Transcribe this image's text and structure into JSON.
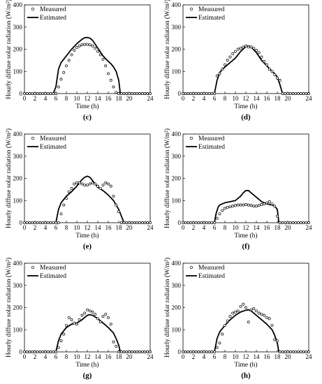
{
  "chart_data": [
    {
      "type": "line",
      "panel": "(c)",
      "title": "",
      "xlabel": "Time (h)",
      "ylabel": "Hourly diffuse solar radiation (W/m²)",
      "xlim": [
        0,
        24
      ],
      "ylim": [
        0,
        400
      ],
      "xticks": [
        0,
        2,
        4,
        6,
        8,
        10,
        12,
        14,
        16,
        18,
        20,
        24
      ],
      "yticks": [
        0,
        100,
        200,
        300,
        400
      ],
      "grid": false,
      "legend": "top-left",
      "series": [
        {
          "name": "Measured",
          "kind": "scatter",
          "x": [
            0,
            0.5,
            1,
            1.5,
            2,
            2.5,
            3,
            3.5,
            4,
            4.5,
            5,
            5.5,
            6,
            6.5,
            7,
            7.5,
            8,
            8.5,
            9,
            9.5,
            10,
            10.5,
            11,
            11.5,
            12,
            12.5,
            13,
            13.5,
            14,
            14.5,
            15,
            15.5,
            16,
            16.5,
            17,
            17.5,
            18,
            18.5,
            19,
            19.5,
            20,
            20.5,
            21,
            21.5,
            22,
            22.5,
            23,
            23.5,
            24
          ],
          "y": [
            0,
            0,
            0,
            0,
            0,
            0,
            0,
            0,
            0,
            0,
            0,
            0,
            0,
            30,
            65,
            95,
            125,
            150,
            175,
            195,
            208,
            215,
            220,
            222,
            222,
            220,
            215,
            205,
            190,
            175,
            155,
            125,
            90,
            60,
            30,
            5,
            0,
            0,
            0,
            0,
            0,
            0,
            0,
            0,
            0,
            0,
            0,
            0,
            0
          ]
        },
        {
          "name": "Estimated",
          "kind": "line",
          "x": [
            0,
            5.5,
            6,
            6.5,
            7,
            7.5,
            8,
            9,
            10,
            11,
            11.5,
            12,
            12.5,
            13,
            14,
            15,
            16,
            16.5,
            17,
            17.5,
            18,
            18.3,
            24
          ],
          "y": [
            0,
            0,
            30,
            110,
            140,
            155,
            170,
            200,
            225,
            245,
            252,
            253,
            250,
            240,
            205,
            170,
            145,
            135,
            120,
            100,
            60,
            0,
            0
          ]
        }
      ]
    },
    {
      "type": "line",
      "panel": "(d)",
      "title": "",
      "xlabel": "Time (h)",
      "ylabel": "Hourly diffuse solar radiation (W/m²)",
      "xlim": [
        0,
        24
      ],
      "ylim": [
        0,
        400
      ],
      "xticks": [
        0,
        2,
        4,
        6,
        8,
        10,
        12,
        14,
        16,
        18,
        20,
        24
      ],
      "yticks": [
        0,
        100,
        200,
        300,
        400
      ],
      "grid": false,
      "legend": "top-left",
      "series": [
        {
          "name": "Measured",
          "kind": "scatter",
          "x": [
            0,
            0.5,
            1,
            1.5,
            2,
            2.5,
            3,
            3.5,
            4,
            4.5,
            5,
            5.5,
            6,
            6.5,
            7,
            7.5,
            8,
            8.5,
            9,
            9.5,
            10,
            10.5,
            11,
            11.5,
            12,
            12.5,
            13,
            13.5,
            14,
            14.5,
            15,
            15.5,
            16,
            16.5,
            17,
            17.5,
            18,
            18.5,
            19,
            19.5,
            20,
            20.5,
            21,
            21.5,
            22,
            22.5,
            23,
            23.5,
            24
          ],
          "y": [
            0,
            0,
            0,
            0,
            0,
            0,
            0,
            0,
            0,
            0,
            0,
            0,
            0,
            80,
            90,
            110,
            130,
            150,
            165,
            180,
            190,
            200,
            205,
            210,
            215,
            210,
            210,
            205,
            195,
            185,
            165,
            145,
            130,
            110,
            100,
            85,
            70,
            60,
            0,
            0,
            0,
            0,
            0,
            0,
            0,
            0,
            0,
            0,
            0
          ]
        },
        {
          "name": "Estimated",
          "kind": "line",
          "x": [
            0,
            6,
            6.5,
            7,
            8,
            9,
            10,
            11,
            12,
            12.5,
            13,
            14,
            15,
            16,
            17,
            17.5,
            18,
            18.5,
            19,
            24
          ],
          "y": [
            0,
            0,
            60,
            95,
            120,
            140,
            160,
            190,
            212,
            215,
            210,
            185,
            150,
            125,
            100,
            90,
            75,
            40,
            0,
            0
          ]
        }
      ]
    },
    {
      "type": "line",
      "panel": "(e)",
      "title": "",
      "xlabel": "Time (h)",
      "ylabel": "Hourly diffuse solar radiation (W/m²)",
      "xlim": [
        0,
        24
      ],
      "ylim": [
        0,
        400
      ],
      "xticks": [
        0,
        2,
        4,
        6,
        8,
        10,
        12,
        14,
        16,
        18,
        20,
        24
      ],
      "yticks": [
        0,
        100,
        200,
        300,
        400
      ],
      "grid": false,
      "legend": "top-left",
      "series": [
        {
          "name": "Measured",
          "kind": "scatter",
          "x": [
            0,
            0.5,
            1,
            1.5,
            2,
            2.5,
            3,
            3.5,
            4,
            4.5,
            5,
            5.5,
            6,
            6.5,
            7,
            7.5,
            8,
            8.5,
            9,
            9.5,
            10,
            10.5,
            11,
            11.5,
            12,
            12.5,
            13,
            13.5,
            14,
            14.5,
            15,
            15.5,
            16,
            16.5,
            17,
            17.5,
            18,
            18.5,
            19,
            19.5,
            20,
            20.5,
            21,
            21.5,
            22,
            22.5,
            23,
            23.5,
            24
          ],
          "y": [
            0,
            0,
            0,
            0,
            0,
            0,
            0,
            0,
            0,
            0,
            0,
            0,
            0,
            0,
            40,
            80,
            110,
            140,
            155,
            175,
            180,
            180,
            175,
            170,
            170,
            175,
            180,
            175,
            165,
            155,
            170,
            180,
            175,
            165,
            120,
            80,
            50,
            0,
            0,
            0,
            0,
            0,
            0,
            0,
            0,
            0,
            0,
            0,
            0
          ]
        },
        {
          "name": "Estimated",
          "kind": "line",
          "x": [
            0,
            6,
            6.5,
            7,
            8,
            9,
            10,
            11,
            11.5,
            12,
            12.5,
            13,
            14,
            15,
            16,
            17,
            17.5,
            18,
            18.5,
            19,
            24
          ],
          "y": [
            0,
            0,
            60,
            90,
            120,
            140,
            165,
            195,
            205,
            210,
            205,
            190,
            160,
            145,
            125,
            100,
            80,
            60,
            30,
            0,
            0
          ]
        }
      ]
    },
    {
      "type": "line",
      "panel": "(f)",
      "title": "",
      "xlabel": "Time (h)",
      "ylabel": "Hourly diffuse solar radiation (W/m²)",
      "xlim": [
        0,
        24
      ],
      "ylim": [
        0,
        400
      ],
      "xticks": [
        0,
        2,
        4,
        6,
        8,
        10,
        12,
        14,
        16,
        18,
        20,
        24
      ],
      "yticks": [
        0,
        100,
        200,
        300,
        400
      ],
      "grid": false,
      "legend": "top-left",
      "series": [
        {
          "name": "Measured",
          "kind": "scatter",
          "x": [
            0,
            0.5,
            1,
            1.5,
            2,
            2.5,
            3,
            3.5,
            4,
            4.5,
            5,
            5.5,
            6,
            6.5,
            7,
            7.5,
            8,
            8.5,
            9,
            9.5,
            10,
            10.5,
            11,
            11.5,
            12,
            12.5,
            13,
            13.5,
            14,
            14.5,
            15,
            15.5,
            16,
            16.5,
            17,
            17.5,
            18,
            18.5,
            19,
            19.5,
            20,
            20.5,
            21,
            21.5,
            22,
            22.5,
            23,
            23.5,
            24
          ],
          "y": [
            0,
            0,
            0,
            0,
            0,
            0,
            0,
            0,
            0,
            0,
            0,
            0,
            0,
            20,
            40,
            55,
            65,
            70,
            72,
            75,
            78,
            80,
            80,
            80,
            82,
            80,
            78,
            75,
            75,
            78,
            82,
            85,
            90,
            95,
            85,
            75,
            30,
            0,
            0,
            0,
            0,
            0,
            0,
            0,
            0,
            0,
            0,
            0,
            0
          ]
        },
        {
          "name": "Estimated",
          "kind": "line",
          "x": [
            0,
            6,
            6.3,
            6.7,
            7,
            8,
            9,
            10,
            11,
            11.5,
            12,
            12.5,
            13,
            14,
            15,
            16,
            17,
            17.5,
            18,
            18.3,
            24
          ],
          "y": [
            0,
            0,
            40,
            70,
            80,
            90,
            95,
            100,
            120,
            135,
            145,
            145,
            135,
            115,
            95,
            85,
            80,
            75,
            60,
            0,
            0
          ]
        }
      ]
    },
    {
      "type": "line",
      "panel": "(g)",
      "title": "",
      "xlabel": "Time (h)",
      "ylabel": "Hourly diffuse solar radiation (W/m²)",
      "xlim": [
        0,
        24
      ],
      "ylim": [
        0,
        400
      ],
      "xticks": [
        0,
        2,
        4,
        6,
        8,
        10,
        12,
        14,
        16,
        18,
        20,
        24
      ],
      "yticks": [
        0,
        100,
        200,
        300,
        400
      ],
      "grid": false,
      "legend": "top-left",
      "series": [
        {
          "name": "Measured",
          "kind": "scatter",
          "x": [
            0,
            0.5,
            1,
            1.5,
            2,
            2.5,
            3,
            3.5,
            4,
            4.5,
            5,
            5.5,
            6,
            6.5,
            7,
            7.5,
            8,
            8.5,
            9,
            9.5,
            10,
            10.5,
            11,
            11.5,
            12,
            12.5,
            13,
            13.5,
            14,
            14.5,
            15,
            15.5,
            16,
            16.5,
            17,
            17.5,
            18,
            18.5,
            19,
            19.5,
            20,
            20.5,
            21,
            21.5,
            22,
            22.5,
            23,
            23.5,
            24
          ],
          "y": [
            0,
            0,
            0,
            0,
            0,
            0,
            0,
            0,
            0,
            0,
            0,
            0,
            0,
            20,
            50,
            80,
            120,
            155,
            145,
            130,
            125,
            145,
            165,
            175,
            190,
            185,
            180,
            170,
            150,
            135,
            160,
            170,
            155,
            125,
            45,
            25,
            0,
            0,
            0,
            0,
            0,
            0,
            0,
            0,
            0,
            0,
            0,
            0,
            0
          ]
        },
        {
          "name": "Estimated",
          "kind": "line",
          "x": [
            0,
            6,
            6.5,
            7,
            8,
            9,
            10,
            11,
            12,
            12.5,
            13,
            14,
            15,
            16,
            17,
            17.5,
            18,
            18.3,
            24
          ],
          "y": [
            0,
            0,
            50,
            80,
            110,
            125,
            130,
            145,
            165,
            168,
            165,
            150,
            130,
            110,
            85,
            60,
            30,
            0,
            0
          ]
        }
      ]
    },
    {
      "type": "line",
      "panel": "(h)",
      "title": "",
      "xlabel": "Time (h)",
      "ylabel": "Hourly diffuse solar radiation (W/m²)",
      "xlim": [
        0,
        24
      ],
      "ylim": [
        0,
        400
      ],
      "xticks": [
        0,
        2,
        4,
        6,
        8,
        10,
        12,
        14,
        16,
        18,
        20,
        24
      ],
      "yticks": [
        0,
        100,
        200,
        300,
        400
      ],
      "grid": false,
      "legend": "top-left",
      "series": [
        {
          "name": "Measured",
          "kind": "scatter",
          "x": [
            0,
            0.5,
            1,
            1.5,
            2,
            2.5,
            3,
            3.5,
            4,
            4.5,
            5,
            5.5,
            6,
            6.5,
            7,
            7.5,
            8,
            8.5,
            9,
            9.5,
            10,
            10.5,
            11,
            11.5,
            12,
            12.5,
            13,
            13.5,
            14,
            14.5,
            15,
            15.5,
            16,
            16.5,
            17,
            17.5,
            18,
            18.5,
            19,
            19.5,
            20,
            20.5,
            21,
            21.5,
            22,
            22.5,
            23,
            23.5,
            24
          ],
          "y": [
            0,
            0,
            0,
            0,
            0,
            0,
            0,
            0,
            0,
            0,
            0,
            0,
            0,
            20,
            40,
            80,
            120,
            140,
            160,
            175,
            180,
            185,
            205,
            215,
            200,
            135,
            190,
            195,
            185,
            175,
            170,
            165,
            155,
            150,
            120,
            55,
            50,
            0,
            0,
            0,
            0,
            0,
            0,
            0,
            0,
            0,
            0,
            0,
            0
          ]
        },
        {
          "name": "Estimated",
          "kind": "line",
          "x": [
            0,
            6,
            6.5,
            7,
            8,
            9,
            10,
            11,
            12,
            12.5,
            13,
            14,
            15,
            16,
            17,
            17.5,
            18,
            18.3,
            24
          ],
          "y": [
            0,
            0,
            60,
            90,
            120,
            145,
            165,
            180,
            188,
            190,
            185,
            165,
            145,
            125,
            100,
            75,
            40,
            0,
            0
          ]
        }
      ]
    }
  ]
}
